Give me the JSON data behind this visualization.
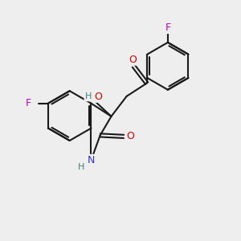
{
  "bg_color": "#eeeeee",
  "bond_color": "#1a1a1a",
  "bond_width": 1.5,
  "atom_colors": {
    "N": "#3333cc",
    "O": "#cc0000",
    "F_indole": "#bb00bb",
    "F_phenyl": "#bb00bb",
    "H": "#408080"
  }
}
